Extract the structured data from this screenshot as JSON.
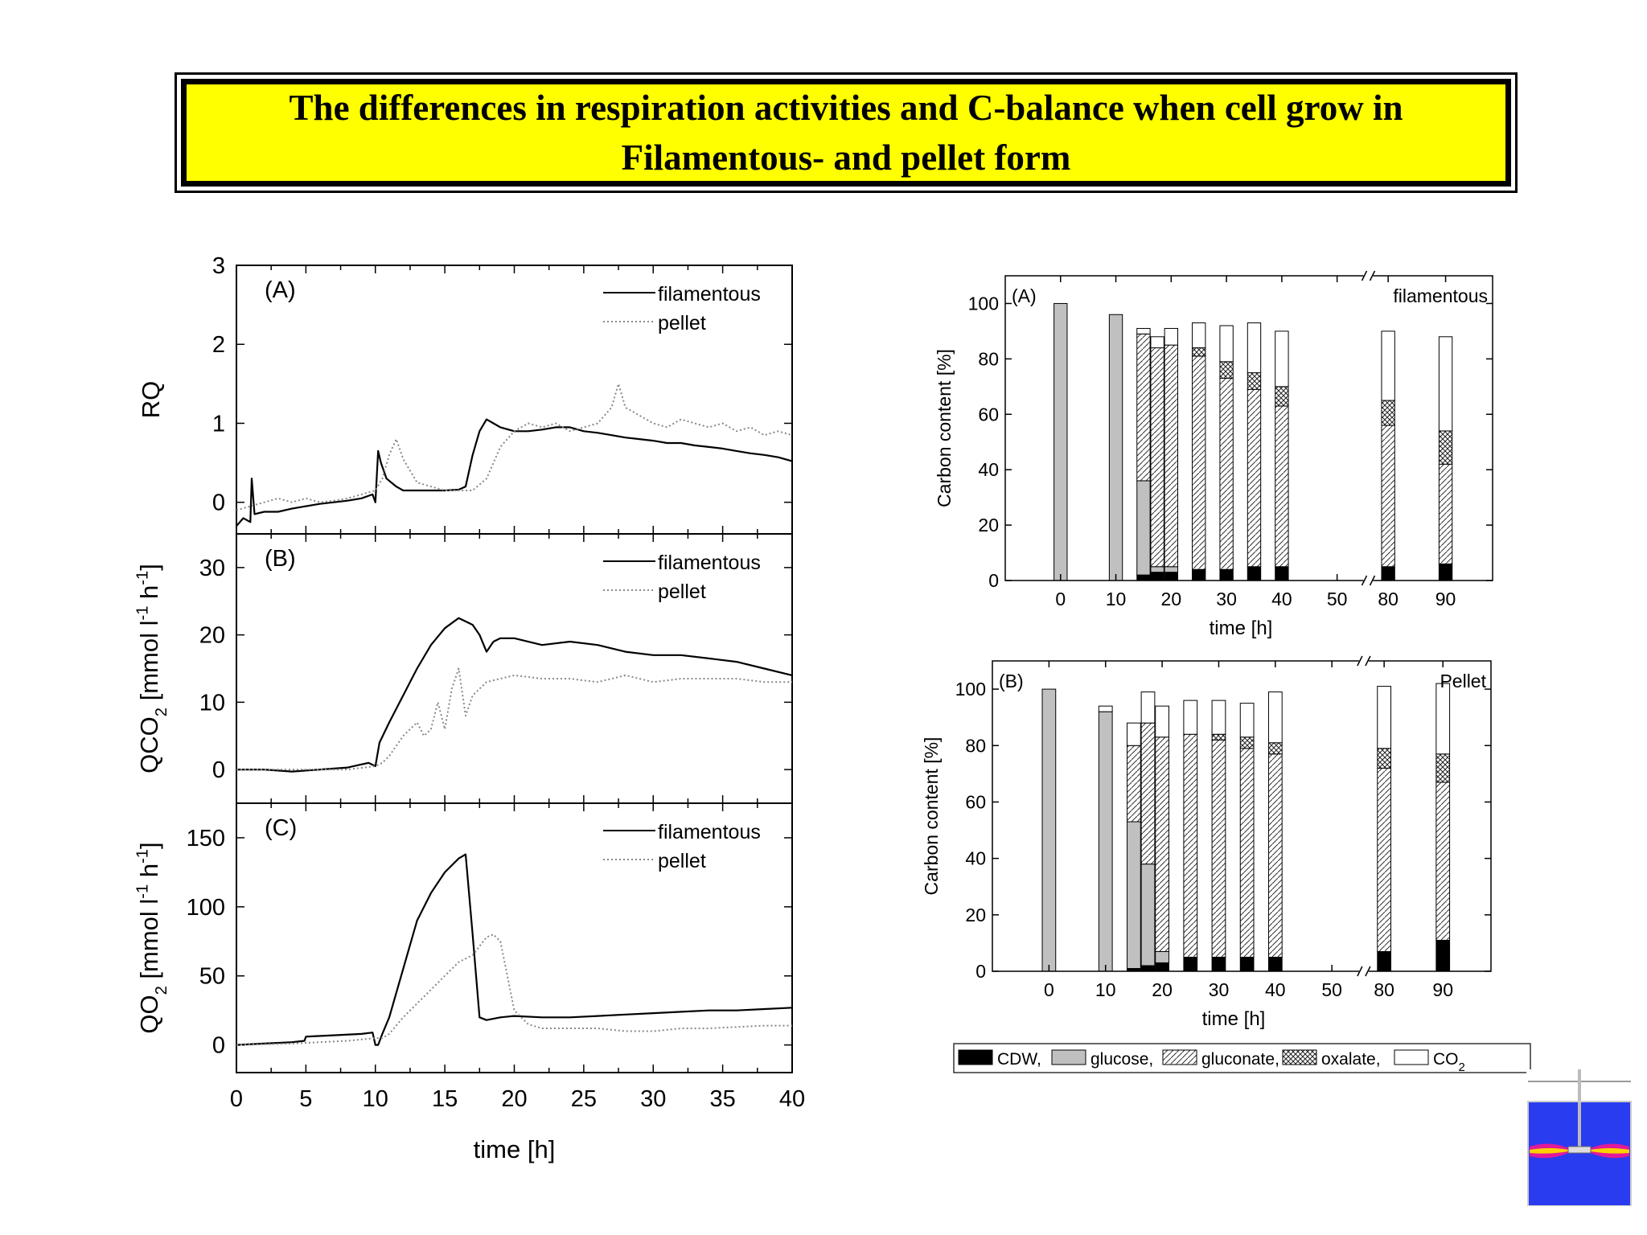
{
  "header": {
    "title_line1": "The differences in respiration activities and C-balance when cell grow in",
    "title_line2": "Filamentous- and pellet form"
  },
  "colors": {
    "title_background": "#ffff00",
    "line_filamentous": "#000000",
    "line_pellet": "#888888",
    "bar_outline": "#000000",
    "cdw": "#000000",
    "glucose": "#c0c0c0",
    "co2": "#ffffff"
  },
  "chart_data": [
    {
      "type": "line",
      "panel_label": "(A)",
      "xlabel": "time [h]",
      "ylabel": "RQ",
      "xlim": [
        0,
        40
      ],
      "ylim": [
        -0.4,
        3
      ],
      "xticks": [
        "0",
        "5",
        "10",
        "15",
        "20",
        "25",
        "30",
        "35",
        "40"
      ],
      "yticks": [
        "0",
        "1",
        "2",
        "3"
      ],
      "legend": [
        "filamentous",
        "pellet"
      ],
      "legend_position": "top-right",
      "series": [
        {
          "name": "filamentous",
          "style": "solid",
          "x": [
            0,
            0.5,
            1,
            1.1,
            1.3,
            2,
            3,
            4,
            5,
            6,
            7,
            8,
            9,
            9.8,
            10,
            10.2,
            10.4,
            10.8,
            11.5,
            12,
            13,
            14,
            15,
            16,
            16.5,
            17,
            17.5,
            18,
            18.5,
            19,
            20,
            21,
            22,
            23,
            24,
            25,
            26,
            27,
            28,
            29,
            30,
            31,
            32,
            33,
            34,
            35,
            36,
            37,
            38,
            39,
            40
          ],
          "y": [
            -0.3,
            -0.2,
            -0.25,
            0.3,
            -0.15,
            -0.12,
            -0.12,
            -0.08,
            -0.05,
            -0.02,
            0.0,
            0.02,
            0.05,
            0.1,
            0.0,
            0.65,
            0.5,
            0.3,
            0.2,
            0.15,
            0.15,
            0.15,
            0.15,
            0.16,
            0.2,
            0.6,
            0.9,
            1.05,
            1.0,
            0.95,
            0.9,
            0.9,
            0.92,
            0.95,
            0.95,
            0.9,
            0.88,
            0.85,
            0.82,
            0.8,
            0.78,
            0.75,
            0.75,
            0.72,
            0.7,
            0.68,
            0.65,
            0.62,
            0.6,
            0.57,
            0.52
          ]
        },
        {
          "name": "pellet",
          "style": "dotted",
          "x": [
            0,
            1,
            2,
            3,
            4,
            5,
            6,
            7,
            8,
            9,
            10,
            10.5,
            11,
            11.5,
            12,
            13,
            14,
            15,
            16,
            17,
            18,
            19,
            20,
            21,
            22,
            23,
            24,
            25,
            26,
            27,
            27.5,
            28,
            29,
            30,
            31,
            32,
            33,
            34,
            35,
            36,
            37,
            38,
            39,
            40
          ],
          "y": [
            -0.1,
            -0.05,
            0.0,
            0.05,
            0.0,
            0.05,
            0.0,
            0.02,
            0.05,
            0.1,
            0.15,
            0.3,
            0.6,
            0.8,
            0.55,
            0.25,
            0.2,
            0.15,
            0.15,
            0.15,
            0.3,
            0.7,
            0.9,
            1.0,
            0.95,
            1.0,
            0.9,
            0.95,
            1.0,
            1.2,
            1.5,
            1.2,
            1.1,
            1.0,
            0.95,
            1.05,
            1.0,
            0.95,
            1.0,
            0.9,
            0.95,
            0.85,
            0.9,
            0.85
          ]
        }
      ]
    },
    {
      "type": "line",
      "panel_label": "(B)",
      "xlabel": "time [h]",
      "ylabel": "QCO2 [mmol l-1 h-1]",
      "xlim": [
        0,
        40
      ],
      "ylim": [
        -5,
        35
      ],
      "xticks": [
        "0",
        "5",
        "10",
        "15",
        "20",
        "25",
        "30",
        "35",
        "40"
      ],
      "yticks": [
        "0",
        "10",
        "20",
        "30"
      ],
      "legend": [
        "filamentous",
        "pellet"
      ],
      "legend_position": "top-right",
      "series": [
        {
          "name": "filamentous",
          "style": "solid",
          "x": [
            0,
            2,
            4,
            6,
            8,
            9.5,
            10,
            10.3,
            11,
            12,
            13,
            14,
            15,
            16,
            16.5,
            17,
            17.5,
            18,
            18.5,
            19,
            20,
            22,
            24,
            26,
            28,
            30,
            32,
            34,
            36,
            38,
            40
          ],
          "y": [
            0,
            0,
            -0.3,
            0,
            0.3,
            1,
            0.5,
            4,
            7,
            11,
            15,
            18.5,
            21,
            22.5,
            22,
            21.5,
            20,
            17.5,
            19,
            19.5,
            19.5,
            18.5,
            19,
            18.5,
            17.5,
            17,
            17,
            16.5,
            16,
            15,
            14
          ]
        },
        {
          "name": "pellet",
          "style": "dotted",
          "x": [
            0,
            2,
            4,
            6,
            8,
            10,
            10.5,
            11,
            12,
            13,
            13.5,
            14,
            14.5,
            15,
            15.5,
            16,
            16.5,
            17,
            18,
            19,
            20,
            22,
            24,
            26,
            28,
            30,
            32,
            34,
            36,
            38,
            40
          ],
          "y": [
            0,
            0,
            0,
            0,
            0,
            0.5,
            1,
            2,
            5,
            7,
            5,
            6,
            10,
            6,
            12,
            15,
            8,
            11,
            13,
            13.5,
            14,
            13.5,
            13.5,
            13,
            14,
            13,
            13.5,
            13.5,
            13.5,
            13,
            13
          ]
        }
      ]
    },
    {
      "type": "line",
      "panel_label": "(C)",
      "xlabel": "time [h]",
      "ylabel": "QO2 [mmol l-1 h-1]",
      "xlim": [
        0,
        40
      ],
      "ylim": [
        -20,
        175
      ],
      "xticks": [
        "0",
        "5",
        "10",
        "15",
        "20",
        "25",
        "30",
        "35",
        "40"
      ],
      "yticks": [
        "0",
        "50",
        "100",
        "150"
      ],
      "legend": [
        "filamentous",
        "pellet"
      ],
      "legend_position": "top-right",
      "series": [
        {
          "name": "filamentous",
          "style": "solid",
          "x": [
            0,
            2,
            4,
            4.9,
            5,
            7,
            9,
            9.8,
            10,
            10.2,
            10.5,
            11,
            12,
            13,
            14,
            15,
            16,
            16.5,
            17,
            17.5,
            18,
            19,
            20,
            22,
            24,
            26,
            28,
            30,
            32,
            34,
            36,
            38,
            40
          ],
          "y": [
            0,
            1,
            2,
            3,
            6,
            7,
            8,
            9,
            0,
            0,
            8,
            20,
            55,
            90,
            110,
            125,
            135,
            138,
            80,
            20,
            18,
            20,
            21,
            20,
            20,
            21,
            22,
            23,
            24,
            25,
            25,
            26,
            27
          ]
        },
        {
          "name": "pellet",
          "style": "dotted",
          "x": [
            0,
            2,
            4,
            6,
            8,
            9,
            10,
            10.5,
            11,
            12,
            13,
            14,
            15,
            16,
            17,
            18,
            18.5,
            19,
            19.5,
            20,
            21,
            22,
            24,
            26,
            28,
            30,
            32,
            34,
            36,
            38,
            40
          ],
          "y": [
            0,
            0.5,
            1,
            2,
            3,
            4,
            5,
            5,
            8,
            20,
            30,
            40,
            50,
            60,
            65,
            78,
            80,
            75,
            50,
            25,
            15,
            12,
            12,
            12,
            10,
            10,
            12,
            12,
            13,
            14,
            14
          ]
        }
      ]
    },
    {
      "type": "bar",
      "stacked": true,
      "panel_label": "(A)",
      "subtitle": "filamentous",
      "xlabel": "time [h]",
      "ylabel": "Carbon content [%]",
      "ylim": [
        0,
        110
      ],
      "xticks": [
        "0",
        "10",
        "20",
        "30",
        "40",
        "50",
        "80",
        "90"
      ],
      "yticks": [
        "0",
        "20",
        "40",
        "60",
        "80",
        "100"
      ],
      "broken_x_axis": true,
      "stack_order": [
        "CDW",
        "glucose",
        "gluconate",
        "oxalate",
        "CO2"
      ],
      "bars": [
        {
          "t": 0,
          "CDW": 0,
          "glucose": 100,
          "gluconate": 0,
          "oxalate": 0,
          "CO2": 0
        },
        {
          "t": 10,
          "CDW": 0,
          "glucose": 96,
          "gluconate": 0,
          "oxalate": 0,
          "CO2": 0
        },
        {
          "t": 15,
          "CDW": 2,
          "glucose": 34,
          "gluconate": 53,
          "oxalate": 0,
          "CO2": 2
        },
        {
          "t": 17.5,
          "CDW": 3,
          "glucose": 2,
          "gluconate": 79,
          "oxalate": 0,
          "CO2": 4
        },
        {
          "t": 20,
          "CDW": 3,
          "glucose": 2,
          "gluconate": 80,
          "oxalate": 0,
          "CO2": 6
        },
        {
          "t": 25,
          "CDW": 4,
          "glucose": 0,
          "gluconate": 77,
          "oxalate": 3,
          "CO2": 9
        },
        {
          "t": 30,
          "CDW": 4,
          "glucose": 0,
          "gluconate": 69,
          "oxalate": 6,
          "CO2": 13
        },
        {
          "t": 35,
          "CDW": 5,
          "glucose": 0,
          "gluconate": 64,
          "oxalate": 6,
          "CO2": 18
        },
        {
          "t": 40,
          "CDW": 5,
          "glucose": 0,
          "gluconate": 58,
          "oxalate": 7,
          "CO2": 20
        },
        {
          "t": 80,
          "CDW": 5,
          "glucose": 0,
          "gluconate": 51,
          "oxalate": 9,
          "CO2": 25
        },
        {
          "t": 90,
          "CDW": 6,
          "glucose": 0,
          "gluconate": 36,
          "oxalate": 12,
          "CO2": 34
        }
      ]
    },
    {
      "type": "bar",
      "stacked": true,
      "panel_label": "(B)",
      "subtitle": "Pellet",
      "xlabel": "time [h]",
      "ylabel": "Carbon content [%]",
      "ylim": [
        0,
        110
      ],
      "xticks": [
        "0",
        "10",
        "20",
        "30",
        "40",
        "50",
        "80",
        "90"
      ],
      "yticks": [
        "0",
        "20",
        "40",
        "60",
        "80",
        "100"
      ],
      "broken_x_axis": true,
      "stack_order": [
        "CDW",
        "glucose",
        "gluconate",
        "oxalate",
        "CO2"
      ],
      "bars": [
        {
          "t": 0,
          "CDW": 0,
          "glucose": 100,
          "gluconate": 0,
          "oxalate": 0,
          "CO2": 0
        },
        {
          "t": 10,
          "CDW": 0,
          "glucose": 92,
          "gluconate": 0,
          "oxalate": 0,
          "CO2": 2
        },
        {
          "t": 15,
          "CDW": 1,
          "glucose": 52,
          "gluconate": 27,
          "oxalate": 0,
          "CO2": 8
        },
        {
          "t": 17.5,
          "CDW": 2,
          "glucose": 36,
          "gluconate": 50,
          "oxalate": 0,
          "CO2": 11
        },
        {
          "t": 20,
          "CDW": 3,
          "glucose": 4,
          "gluconate": 76,
          "oxalate": 0,
          "CO2": 11
        },
        {
          "t": 25,
          "CDW": 5,
          "glucose": 0,
          "gluconate": 79,
          "oxalate": 0,
          "CO2": 12
        },
        {
          "t": 30,
          "CDW": 5,
          "glucose": 0,
          "gluconate": 77,
          "oxalate": 2,
          "CO2": 12
        },
        {
          "t": 35,
          "CDW": 5,
          "glucose": 0,
          "gluconate": 74,
          "oxalate": 4,
          "CO2": 12
        },
        {
          "t": 40,
          "CDW": 5,
          "glucose": 0,
          "gluconate": 72,
          "oxalate": 4,
          "CO2": 18
        },
        {
          "t": 80,
          "CDW": 7,
          "glucose": 0,
          "gluconate": 65,
          "oxalate": 7,
          "CO2": 22
        },
        {
          "t": 90,
          "CDW": 11,
          "glucose": 0,
          "gluconate": 56,
          "oxalate": 10,
          "CO2": 25
        }
      ]
    }
  ],
  "bar_legend": [
    {
      "label": "CDW,",
      "fill": "cdw"
    },
    {
      "label": "glucose,",
      "fill": "glucose"
    },
    {
      "label": "gluconate,",
      "fill": "gluconate"
    },
    {
      "label": "oxalate,",
      "fill": "oxalate"
    },
    {
      "label": "CO",
      "sub": "2",
      "fill": "co2"
    }
  ],
  "logo": {
    "icon": "bioreactor-logo-icon"
  }
}
